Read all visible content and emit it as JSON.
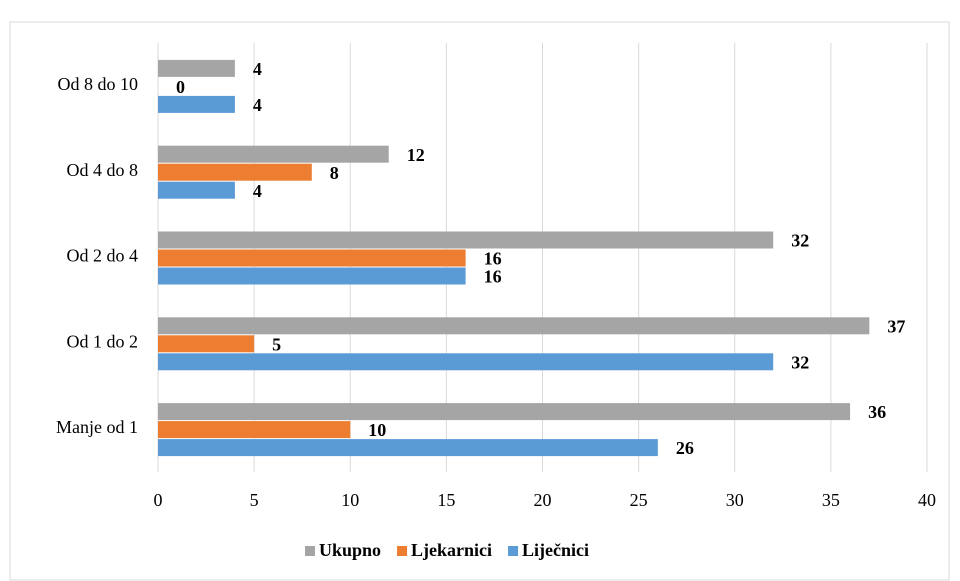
{
  "chart_data": {
    "type": "bar",
    "orientation": "horizontal",
    "categories": [
      "Manje od 1",
      "Od 1 do 2",
      "Od 2 do 4",
      "Od 4 do 8",
      "Od 8 do 10"
    ],
    "series": [
      {
        "name": "Ukupno",
        "color": "#a5a5a5",
        "values": [
          36,
          37,
          32,
          12,
          4
        ]
      },
      {
        "name": "Ljekarnici",
        "color": "#ed7d31",
        "values": [
          10,
          5,
          16,
          8,
          0
        ]
      },
      {
        "name": "Liječnici",
        "color": "#5b9bd5",
        "values": [
          26,
          32,
          16,
          4,
          4
        ]
      }
    ],
    "xlim": [
      0,
      40
    ],
    "xticks": [
      0,
      5,
      10,
      15,
      20,
      25,
      30,
      35,
      40
    ],
    "grid": true,
    "legend": "bottom"
  }
}
